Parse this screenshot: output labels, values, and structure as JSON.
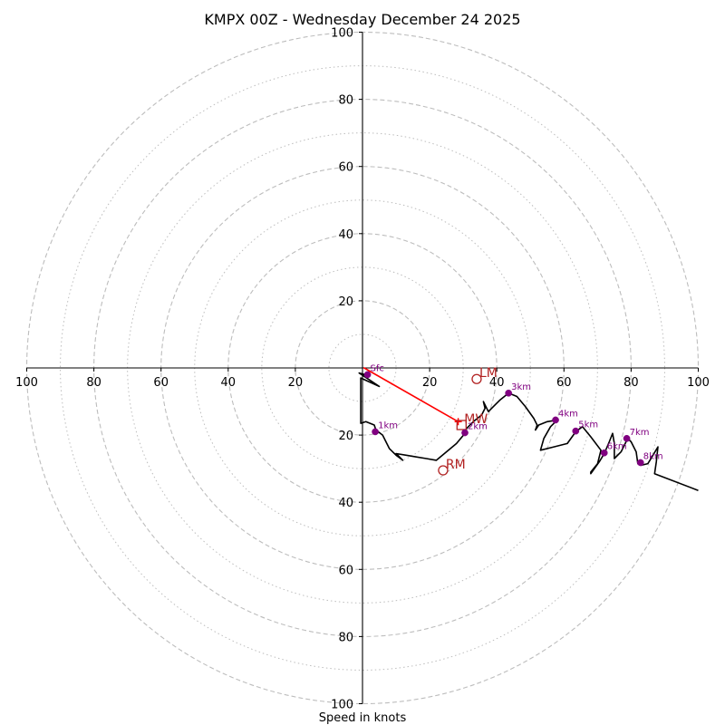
{
  "chart_data": {
    "type": "hodograph",
    "title": "KMPX 00Z - Wednesday December 24 2025",
    "xlabel": "Speed in knots",
    "range": [
      -100,
      100
    ],
    "ring_major": [
      20,
      40,
      60,
      80,
      100
    ],
    "ring_minor": [
      10,
      30,
      50,
      70,
      90
    ],
    "x_tick_values": [
      -100,
      -80,
      -60,
      -40,
      -20,
      20,
      40,
      60,
      80,
      100
    ],
    "x_tick_labels": [
      "100",
      "80",
      "60",
      "40",
      "20",
      "20",
      "40",
      "60",
      "80",
      "100"
    ],
    "y_tick_values": [
      100,
      80,
      60,
      40,
      20,
      -20,
      -40,
      -60,
      -80,
      -100
    ],
    "y_tick_labels": [
      "100",
      "80",
      "60",
      "40",
      "20",
      "20",
      "40",
      "60",
      "80",
      "100"
    ],
    "trace_color": "#000000",
    "marker_color": "#800080",
    "motion_color": "#b22222",
    "shear_color": "#ff0000",
    "ring_color": "#bdbdbd",
    "hodograph_uv": [
      [
        1.3,
        -2.1
      ],
      [
        -1,
        -1.5
      ],
      [
        5,
        -5.5
      ],
      [
        -0.5,
        -3
      ],
      [
        -0.5,
        -16.5
      ],
      [
        1,
        -16
      ],
      [
        3.5,
        -17
      ],
      [
        4,
        -18.5
      ],
      [
        6,
        -20
      ],
      [
        8,
        -24
      ],
      [
        10,
        -26
      ],
      [
        12,
        -27.5
      ],
      [
        10,
        -25.5
      ],
      [
        13,
        -26
      ],
      [
        16,
        -26.5
      ],
      [
        19,
        -27
      ],
      [
        22,
        -27.5
      ],
      [
        25,
        -25
      ],
      [
        28,
        -22.5
      ],
      [
        30.5,
        -19.5
      ],
      [
        31,
        -18
      ],
      [
        33,
        -16
      ],
      [
        35.5,
        -14
      ],
      [
        36.5,
        -12
      ],
      [
        36,
        -10
      ],
      [
        37.5,
        -13
      ],
      [
        39,
        -11.5
      ],
      [
        41,
        -9.5
      ],
      [
        43.5,
        -7.5
      ],
      [
        46,
        -8.5
      ],
      [
        48.5,
        -11.5
      ],
      [
        51,
        -15
      ],
      [
        52,
        -17
      ],
      [
        51.5,
        -18.5
      ],
      [
        52.5,
        -17
      ],
      [
        55,
        -16
      ],
      [
        58,
        -15.5
      ],
      [
        56,
        -17.5
      ],
      [
        54,
        -21
      ],
      [
        53,
        -24.5
      ],
      [
        57,
        -23.5
      ],
      [
        61,
        -22.5
      ],
      [
        63.5,
        -19
      ],
      [
        65.5,
        -17.5
      ],
      [
        68,
        -20.5
      ],
      [
        71,
        -24.5
      ],
      [
        70,
        -28.5
      ],
      [
        68,
        -31
      ],
      [
        68,
        -31.5
      ],
      [
        70.5,
        -28
      ],
      [
        72,
        -25.5
      ],
      [
        73.5,
        -22
      ],
      [
        74.5,
        -19.5
      ],
      [
        75,
        -22.5
      ],
      [
        75,
        -27
      ],
      [
        77,
        -25
      ],
      [
        78.5,
        -22
      ],
      [
        79,
        -21
      ],
      [
        80,
        -22
      ],
      [
        81.5,
        -25
      ],
      [
        82,
        -28.5
      ],
      [
        83,
        -29
      ],
      [
        85,
        -28.5
      ],
      [
        86.5,
        -26
      ],
      [
        88,
        -23.5
      ],
      [
        87.5,
        -28
      ],
      [
        87,
        -31.5
      ],
      [
        100,
        -36.5
      ]
    ],
    "height_markers": [
      {
        "label": "Sfc",
        "u": 1.5,
        "v": -2
      },
      {
        "label": "1km",
        "u": 3.8,
        "v": -19
      },
      {
        "label": "2km",
        "u": 30.5,
        "v": -19.3
      },
      {
        "label": "3km",
        "u": 43.5,
        "v": -7.5
      },
      {
        "label": "4km",
        "u": 57.5,
        "v": -15.5
      },
      {
        "label": "5km",
        "u": 63.5,
        "v": -18.8
      },
      {
        "label": "6km",
        "u": 72,
        "v": -25.3
      },
      {
        "label": "7km",
        "u": 78.7,
        "v": -21
      },
      {
        "label": "8km",
        "u": 82.8,
        "v": -28.2
      }
    ],
    "storm_motion": [
      {
        "label": "LM",
        "u": 34,
        "v": -3.3,
        "marker": "circle"
      },
      {
        "label": "MW",
        "u": 29.5,
        "v": -17,
        "marker": "square"
      },
      {
        "label": "RM",
        "u": 24,
        "v": -30.5,
        "marker": "circle"
      }
    ],
    "shear_vector": {
      "from": [
        0.3,
        0.1
      ],
      "to": [
        28.5,
        -16
      ]
    }
  }
}
